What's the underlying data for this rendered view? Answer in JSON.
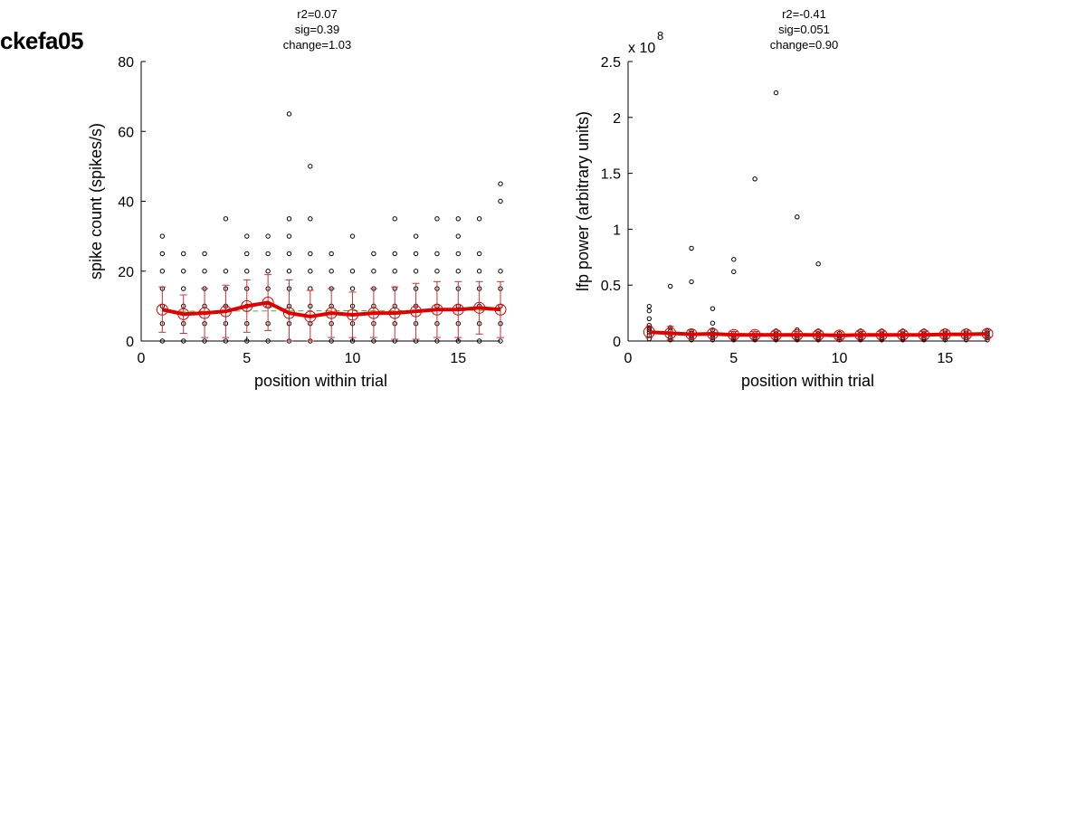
{
  "page_label": "ckefa05",
  "chart_data": [
    {
      "type": "scatter",
      "title": [
        "r2=0.07",
        "sig=0.39",
        "change=1.03"
      ],
      "xlabel": "position within trial",
      "ylabel": "spike count (spikes/s)",
      "xlim": [
        0,
        17
      ],
      "ylim": [
        0,
        80
      ],
      "xticks": [
        0,
        5,
        10,
        15
      ],
      "yticks": [
        0,
        20,
        40,
        60,
        80
      ],
      "multiplier": null,
      "points": {
        "1": [
          0,
          5,
          10,
          15,
          20,
          25,
          30
        ],
        "2": [
          0,
          5,
          10,
          15,
          20,
          25
        ],
        "3": [
          0,
          5,
          10,
          15,
          20,
          25
        ],
        "4": [
          0,
          5,
          10,
          15,
          20,
          35
        ],
        "5": [
          0,
          5,
          10,
          15,
          20,
          25,
          30
        ],
        "6": [
          0,
          5,
          10,
          15,
          20,
          25,
          30
        ],
        "7": [
          0,
          5,
          10,
          15,
          20,
          25,
          30,
          35,
          65
        ],
        "8": [
          0,
          5,
          10,
          15,
          20,
          25,
          35,
          50
        ],
        "9": [
          0,
          5,
          10,
          15,
          20,
          25
        ],
        "10": [
          0,
          5,
          10,
          15,
          20,
          30
        ],
        "11": [
          0,
          5,
          10,
          15,
          20,
          25
        ],
        "12": [
          0,
          5,
          10,
          15,
          20,
          25,
          35
        ],
        "13": [
          0,
          5,
          10,
          15,
          20,
          25,
          30
        ],
        "14": [
          0,
          5,
          10,
          15,
          20,
          25,
          35
        ],
        "15": [
          0,
          5,
          10,
          15,
          20,
          25,
          30,
          35
        ],
        "16": [
          0,
          5,
          10,
          15,
          20,
          25,
          35
        ],
        "17": [
          0,
          5,
          10,
          15,
          20,
          40,
          45
        ]
      },
      "mean": {
        "x": [
          1,
          2,
          3,
          4,
          5,
          6,
          7,
          8,
          9,
          10,
          11,
          12,
          13,
          14,
          15,
          16,
          17
        ],
        "y": [
          9,
          7.7,
          8,
          8.5,
          10,
          11,
          8,
          7,
          8,
          7.5,
          8,
          8,
          8.5,
          9,
          9,
          9.5,
          9
        ],
        "err": [
          6.5,
          5.5,
          7,
          7.5,
          7.5,
          8,
          9.5,
          7.5,
          7,
          6.5,
          7,
          7.5,
          8,
          8,
          8,
          7.5,
          8
        ]
      },
      "fit": {
        "x": [
          1,
          17
        ],
        "y": [
          8.5,
          8.8
        ]
      },
      "colors": {
        "mean": "#e00000",
        "err": "#cc3333",
        "fit": "#33bb33",
        "points": "#000000"
      }
    },
    {
      "type": "scatter",
      "title": [
        "r2=-0.41",
        "sig=0.051",
        "change=0.90"
      ],
      "xlabel": "position within trial",
      "ylabel": "lfp power (arbitrary units)",
      "xlim": [
        0,
        17
      ],
      "ylim": [
        0,
        2.5
      ],
      "xticks": [
        0,
        5,
        10,
        15
      ],
      "yticks": [
        0,
        0.5,
        1,
        1.5,
        2,
        2.5
      ],
      "multiplier": {
        "base": "x 10",
        "exponent": "8"
      },
      "points": {
        "1": [
          0.02,
          0.05,
          0.08,
          0.1,
          0.12,
          0.14,
          0.2,
          0.27,
          0.31
        ],
        "2": [
          0.01,
          0.03,
          0.06,
          0.09,
          0.12,
          0.49
        ],
        "3": [
          0.01,
          0.03,
          0.05,
          0.07,
          0.09,
          0.53,
          0.83
        ],
        "4": [
          0.01,
          0.03,
          0.05,
          0.07,
          0.1,
          0.16,
          0.29
        ],
        "5": [
          0.01,
          0.03,
          0.05,
          0.07,
          0.62,
          0.73
        ],
        "6": [
          0.01,
          0.03,
          0.05,
          0.07,
          1.45
        ],
        "7": [
          0.01,
          0.03,
          0.05,
          0.07,
          0.09,
          2.22
        ],
        "8": [
          0.01,
          0.03,
          0.05,
          0.07,
          0.1,
          1.11
        ],
        "9": [
          0.01,
          0.03,
          0.05,
          0.07,
          0.09,
          0.69
        ],
        "10": [
          0.01,
          0.03,
          0.05,
          0.07
        ],
        "11": [
          0.01,
          0.03,
          0.05,
          0.07,
          0.09
        ],
        "12": [
          0.01,
          0.03,
          0.05,
          0.07,
          0.09
        ],
        "13": [
          0.01,
          0.03,
          0.05,
          0.07,
          0.09
        ],
        "14": [
          0.01,
          0.03,
          0.05,
          0.07,
          0.09
        ],
        "15": [
          0.01,
          0.03,
          0.05,
          0.07,
          0.09
        ],
        "16": [
          0.01,
          0.03,
          0.05,
          0.07,
          0.09
        ],
        "17": [
          0.01,
          0.03,
          0.05,
          0.07,
          0.09
        ]
      },
      "mean": {
        "x": [
          1,
          2,
          3,
          4,
          5,
          6,
          7,
          8,
          9,
          10,
          11,
          12,
          13,
          14,
          15,
          16,
          17
        ],
        "y": [
          0.08,
          0.07,
          0.06,
          0.065,
          0.055,
          0.055,
          0.055,
          0.055,
          0.055,
          0.05,
          0.055,
          0.055,
          0.055,
          0.055,
          0.06,
          0.06,
          0.065
        ],
        "err": [
          0.05,
          0.06,
          0.04,
          0.04,
          0.03,
          0.03,
          0.03,
          0.03,
          0.03,
          0.03,
          0.03,
          0.03,
          0.03,
          0.03,
          0.03,
          0.03,
          0.03
        ]
      },
      "fit": {
        "x": [
          1,
          17
        ],
        "y": [
          0.07,
          0.06
        ]
      },
      "colors": {
        "mean": "#e00000",
        "err": "#cc3333",
        "fit": "#33bb33",
        "points": "#000000"
      }
    }
  ]
}
